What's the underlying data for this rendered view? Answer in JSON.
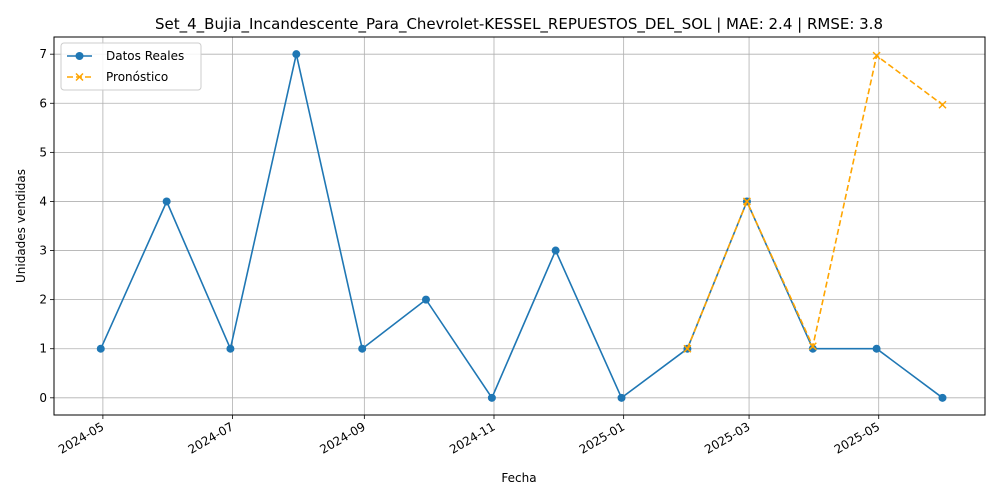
{
  "chart_data": {
    "type": "line",
    "title": "Set_4_Bujia_Incandescente_Para_Chevrolet-KESSEL_REPUESTOS_DEL_SOL | MAE: 2.4 | RMSE: 3.8",
    "xlabel": "Fecha",
    "ylabel": "Unidades vendidas",
    "x_tick_labels": [
      "2024-05",
      "2024-07",
      "2024-09",
      "2024-11",
      "2025-01",
      "2025-03",
      "2025-05"
    ],
    "y_ticks": [
      0,
      1,
      2,
      3,
      4,
      5,
      6,
      7
    ],
    "ylim": [
      -0.35,
      7.35
    ],
    "xlim": [
      "2024-04-08",
      "2025-06-20"
    ],
    "grid": true,
    "legend_position": "upper-left",
    "series": [
      {
        "name": "Datos Reales",
        "color": "#1f77b4",
        "marker": "circle",
        "line_style": "solid",
        "x": [
          "2024-04-30",
          "2024-05-31",
          "2024-06-30",
          "2024-07-31",
          "2024-08-31",
          "2024-09-30",
          "2024-10-31",
          "2024-11-30",
          "2024-12-31",
          "2025-01-31",
          "2025-02-28",
          "2025-03-31",
          "2025-04-30",
          "2025-05-31"
        ],
        "values": [
          1,
          4,
          1,
          7,
          1,
          2,
          0,
          3,
          0,
          1,
          4,
          1,
          1,
          0
        ]
      },
      {
        "name": "Pronóstico",
        "color": "#ffa500",
        "marker": "x",
        "line_style": "dashed",
        "x": [
          "2025-01-31",
          "2025-02-28",
          "2025-03-31",
          "2025-04-30",
          "2025-05-31"
        ],
        "values": [
          1.0,
          4.0,
          1.05,
          6.97,
          5.97
        ]
      }
    ]
  }
}
